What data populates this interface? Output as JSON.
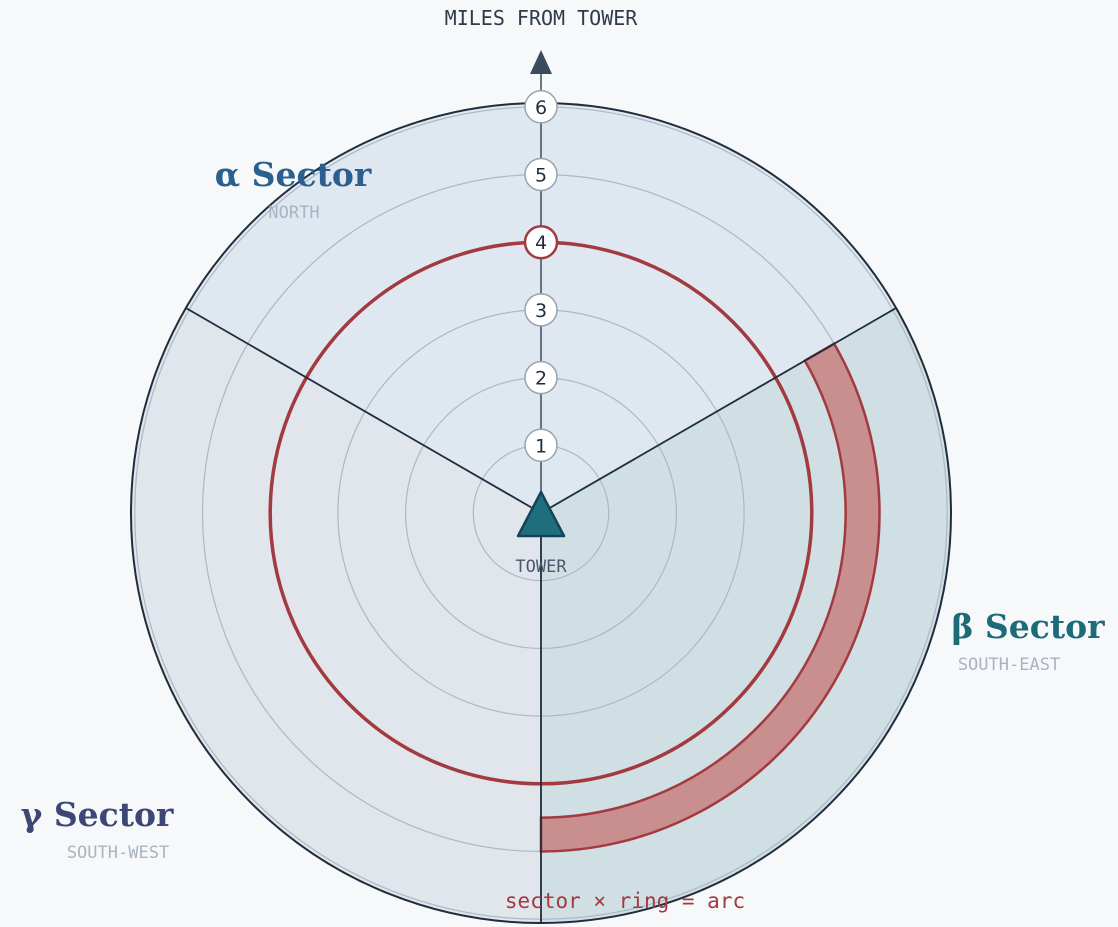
{
  "axis": {
    "title": "MILES FROM TOWER",
    "ticks": [
      "1",
      "2",
      "3",
      "4",
      "5",
      "6"
    ],
    "highlighted_tick": "4"
  },
  "center": {
    "label": "TOWER"
  },
  "sectors": {
    "alpha": {
      "name": "α Sector",
      "direction": "NORTH",
      "fill": "#dfe8f0",
      "color": "#2a5f8f"
    },
    "beta": {
      "name": "β Sector",
      "direction": "SOUTH-EAST",
      "fill": "#cfdfe3",
      "color": "#1c6b78"
    },
    "gamma": {
      "name": "γ Sector",
      "direction": "SOUTH-WEST",
      "fill": "#e1e5ec",
      "color": "#3e4577"
    }
  },
  "highlight": {
    "ring_miles": 4,
    "band_miles": [
      4.5,
      5.0
    ],
    "band_sector": "beta",
    "color": "#a23a40",
    "band_fill": "#c98e8e"
  },
  "caption": "sector × ring = arc"
}
